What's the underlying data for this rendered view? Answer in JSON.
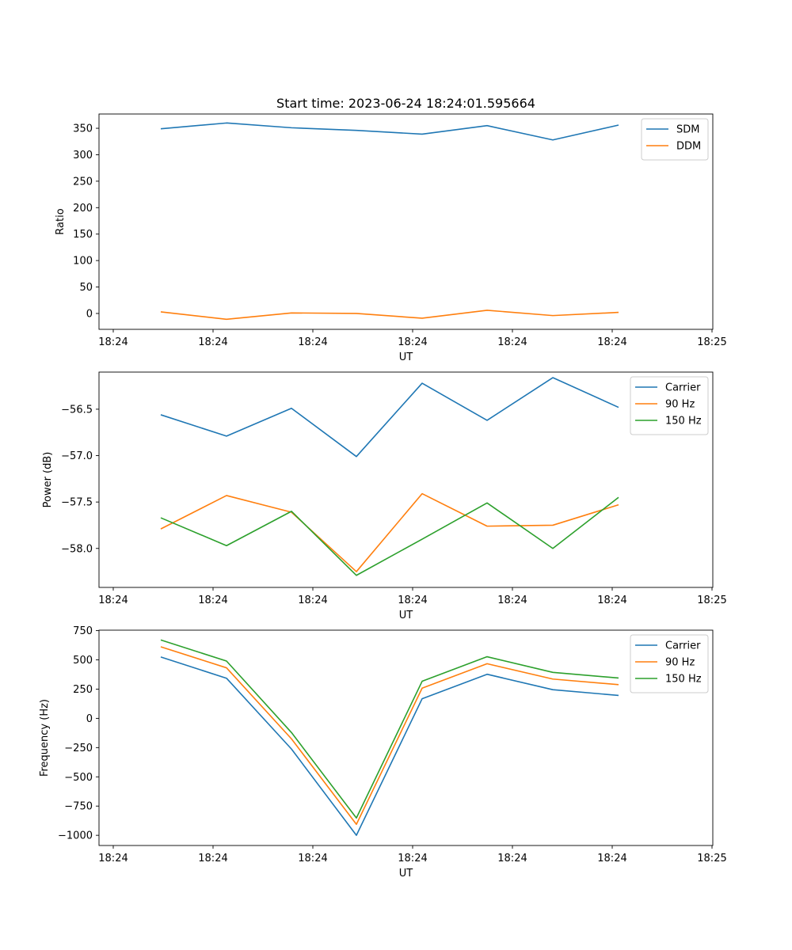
{
  "chart_data": [
    {
      "type": "line",
      "title": "Start time: 2023-06-24 18:24:01.595664",
      "xlabel": "UT",
      "ylabel": "Ratio",
      "x_tick_labels": [
        "18:24",
        "18:24",
        "18:24",
        "18:24",
        "18:24",
        "18:24",
        "18:25"
      ],
      "y_ticks": [
        0,
        50,
        100,
        150,
        200,
        250,
        300,
        350
      ],
      "ylim": [
        -30,
        377
      ],
      "grid": false,
      "legend_position": "top-right",
      "series": [
        {
          "name": "SDM",
          "color": "#1f77b4",
          "values": [
            349,
            360,
            351,
            346,
            339,
            355,
            328,
            356
          ]
        },
        {
          "name": "DDM",
          "color": "#ff7f0e",
          "values": [
            3,
            -11,
            1,
            0,
            -9,
            6,
            -4,
            2
          ]
        }
      ]
    },
    {
      "type": "line",
      "title": "",
      "xlabel": "UT",
      "ylabel": "Power (dB)",
      "x_tick_labels": [
        "18:24",
        "18:24",
        "18:24",
        "18:24",
        "18:24",
        "18:24",
        "18:25"
      ],
      "y_ticks": [
        -58.0,
        -57.5,
        -57.0,
        -56.5
      ],
      "y_tick_labels": [
        "−58.0",
        "−57.5",
        "−57.0",
        "−56.5"
      ],
      "ylim": [
        -58.42,
        -56.1
      ],
      "grid": false,
      "legend_position": "top-right",
      "series": [
        {
          "name": "Carrier",
          "color": "#1f77b4",
          "values": [
            -56.56,
            -56.79,
            -56.49,
            -57.01,
            -56.22,
            -56.62,
            -56.16,
            -56.48
          ]
        },
        {
          "name": "90 Hz",
          "color": "#ff7f0e",
          "values": [
            -57.79,
            -57.43,
            -57.61,
            -58.25,
            -57.41,
            -57.76,
            -57.75,
            -57.53
          ]
        },
        {
          "name": "150 Hz",
          "color": "#2ca02c",
          "values": [
            -57.67,
            -57.97,
            -57.6,
            -58.29,
            -57.9,
            -57.51,
            -58.0,
            -57.45
          ]
        }
      ]
    },
    {
      "type": "line",
      "title": "",
      "xlabel": "UT",
      "ylabel": "Frequency (Hz)",
      "x_tick_labels": [
        "18:24",
        "18:24",
        "18:24",
        "18:24",
        "18:24",
        "18:24",
        "18:25"
      ],
      "y_ticks": [
        -1000,
        -750,
        -500,
        -250,
        0,
        250,
        500,
        750
      ],
      "y_tick_labels": [
        "−1000",
        "−750",
        "−500",
        "−250",
        "0",
        "250",
        "500",
        "750"
      ],
      "ylim": [
        -1087,
        754
      ],
      "grid": false,
      "legend_position": "top-right",
      "series": [
        {
          "name": "Carrier",
          "color": "#1f77b4",
          "values": [
            525,
            343,
            -262,
            -1000,
            168,
            377,
            245,
            196
          ]
        },
        {
          "name": "90 Hz",
          "color": "#ff7f0e",
          "values": [
            612,
            432,
            -175,
            -906,
            258,
            467,
            336,
            288
          ]
        },
        {
          "name": "150 Hz",
          "color": "#2ca02c",
          "values": [
            670,
            490,
            -121,
            -852,
            317,
            527,
            393,
            345
          ]
        }
      ]
    }
  ]
}
